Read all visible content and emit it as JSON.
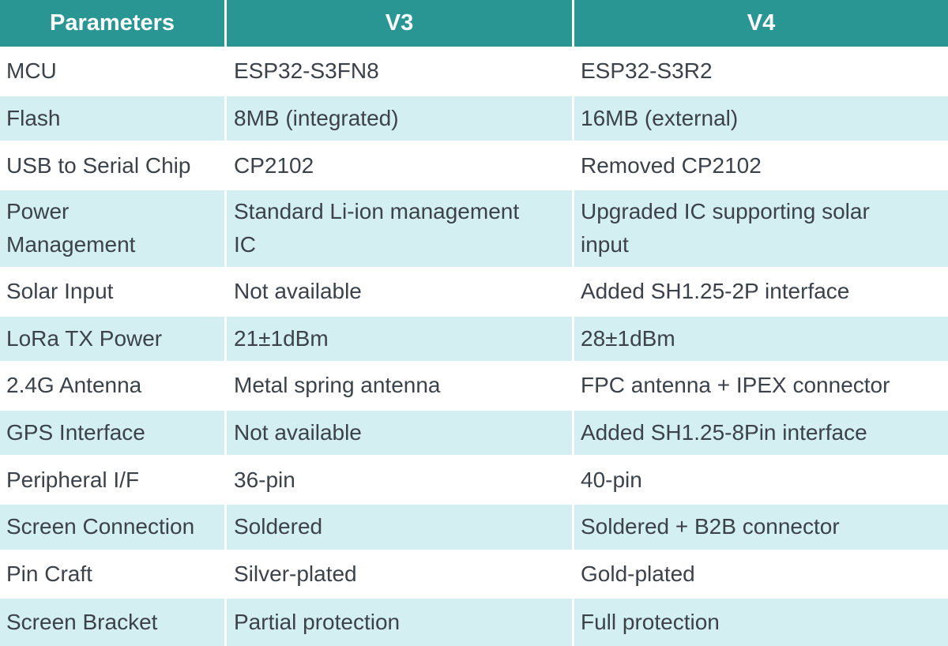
{
  "header": {
    "columns": [
      {
        "label": "Parameters"
      },
      {
        "label": "V3"
      },
      {
        "label": "V4"
      }
    ]
  },
  "rows": [
    {
      "parameter": "MCU",
      "v3": "ESP32-S3FN8",
      "v4": "ESP32-S3R2"
    },
    {
      "parameter": "Flash",
      "v3": "8MB (integrated)",
      "v4": "16MB (external)"
    },
    {
      "parameter": "USB to Serial Chip",
      "v3": "CP2102",
      "v4": "Removed CP2102"
    },
    {
      "parameter": "Power Management",
      "v3": "Standard Li-ion management IC",
      "v4": "Upgraded IC supporting solar input"
    },
    {
      "parameter": "Solar Input",
      "v3": "Not available",
      "v4": "Added SH1.25-2P interface"
    },
    {
      "parameter": "LoRa TX Power",
      "v3": "21±1dBm",
      "v4": "28±1dBm"
    },
    {
      "parameter": "2.4G Antenna",
      "v3": "Metal spring antenna",
      "v4": "FPC antenna + IPEX connector"
    },
    {
      "parameter": "GPS Interface",
      "v3": "Not available",
      "v4": "Added SH1.25-8Pin interface"
    },
    {
      "parameter": "Peripheral I/F",
      "v3": "36-pin",
      "v4": "40-pin"
    },
    {
      "parameter": "Screen Connection",
      "v3": "Soldered",
      "v4": "Soldered + B2B connector"
    },
    {
      "parameter": "Pin Craft",
      "v3": "Silver-plated",
      "v4": "Gold-plated"
    },
    {
      "parameter": "Screen Bracket",
      "v3": "Partial protection",
      "v4": "Full protection"
    }
  ],
  "colors": {
    "header_bg": "#2A9694",
    "header_text": "#FFFFFF",
    "row_bg": "#FFFFFF",
    "row_alt_bg": "#D3EFF1",
    "body_text": "#3B424A",
    "divider": "#FFFFFF"
  }
}
